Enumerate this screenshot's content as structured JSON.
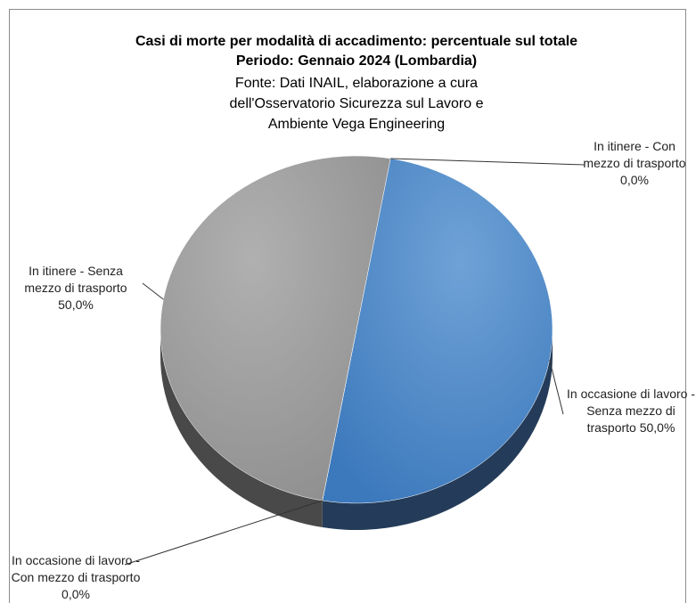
{
  "chart_data": {
    "type": "pie",
    "title": [
      "Casi di morte per modalità di accadimento: percentuale sul totale",
      "Periodo: Gennaio 2024 (Lombardia)"
    ],
    "subtitle": "Fonte: Dati INAIL, elaborazione a cura dell'Osservatorio Sicurezza sul Lavoro e Ambiente Vega Engineering",
    "categories": [
      "In itinere - Con mezzo di trasporto",
      "In occasione di lavoro - Senza mezzo di trasporto",
      "In occasione di lavoro - Con mezzo di trasporto",
      "In itinere - Senza mezzo di trasporto"
    ],
    "values": [
      0,
      50,
      0,
      50
    ],
    "value_labels": [
      "0,0%",
      "50,0%",
      "0,0%",
      "50,0%"
    ],
    "colors": [
      "#c0504d",
      "#4f86c6",
      "#9bbb59",
      "#a3a3a3"
    ],
    "start_angle": 10
  }
}
